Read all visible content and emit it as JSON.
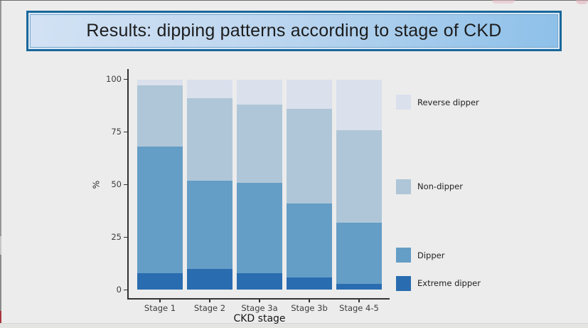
{
  "slide": {
    "title": "Results: dipping patterns according to stage of CKD",
    "background_color": "#ececec",
    "title_box": {
      "border_color": "#19689a",
      "fill_from": "#d3e2f4",
      "fill_to": "#8dc0e9",
      "text_color": "#1c1c1c"
    },
    "edge_artifacts": {
      "left_strip_gray": "#969696",
      "left_strip_gray_dark": "#8a8a8a",
      "left_strip_red": "#a93540",
      "top_smudge_pink": "#e8bcc2"
    }
  },
  "chart_data": {
    "type": "bar",
    "stacked": true,
    "units": "percent",
    "title": "",
    "xlabel": "CKD stage",
    "ylabel": "%",
    "ylim": [
      0,
      100
    ],
    "yticks": [
      0,
      25,
      50,
      75,
      100
    ],
    "grid": false,
    "legend_position": "right",
    "categories": [
      "Stage 1",
      "Stage 2",
      "Stage 3a",
      "Stage 3b",
      "Stage 4-5"
    ],
    "series": [
      {
        "name": "Extreme dipper",
        "color": "#2a6cb0",
        "values": [
          8,
          10,
          8,
          6,
          3
        ]
      },
      {
        "name": "Dipper",
        "color": "#649dc6",
        "values": [
          60,
          42,
          43,
          35,
          29
        ]
      },
      {
        "name": "Non-dipper",
        "color": "#aec6d7",
        "values": [
          29,
          39,
          37,
          45,
          44
        ]
      },
      {
        "name": "Reverse dipper",
        "color": "#dae0ec",
        "values": [
          3,
          9,
          12,
          14,
          24
        ]
      }
    ],
    "legend_order_top_to_bottom": [
      "Reverse dipper",
      "Non-dipper",
      "Dipper",
      "Extreme dipper"
    ]
  }
}
